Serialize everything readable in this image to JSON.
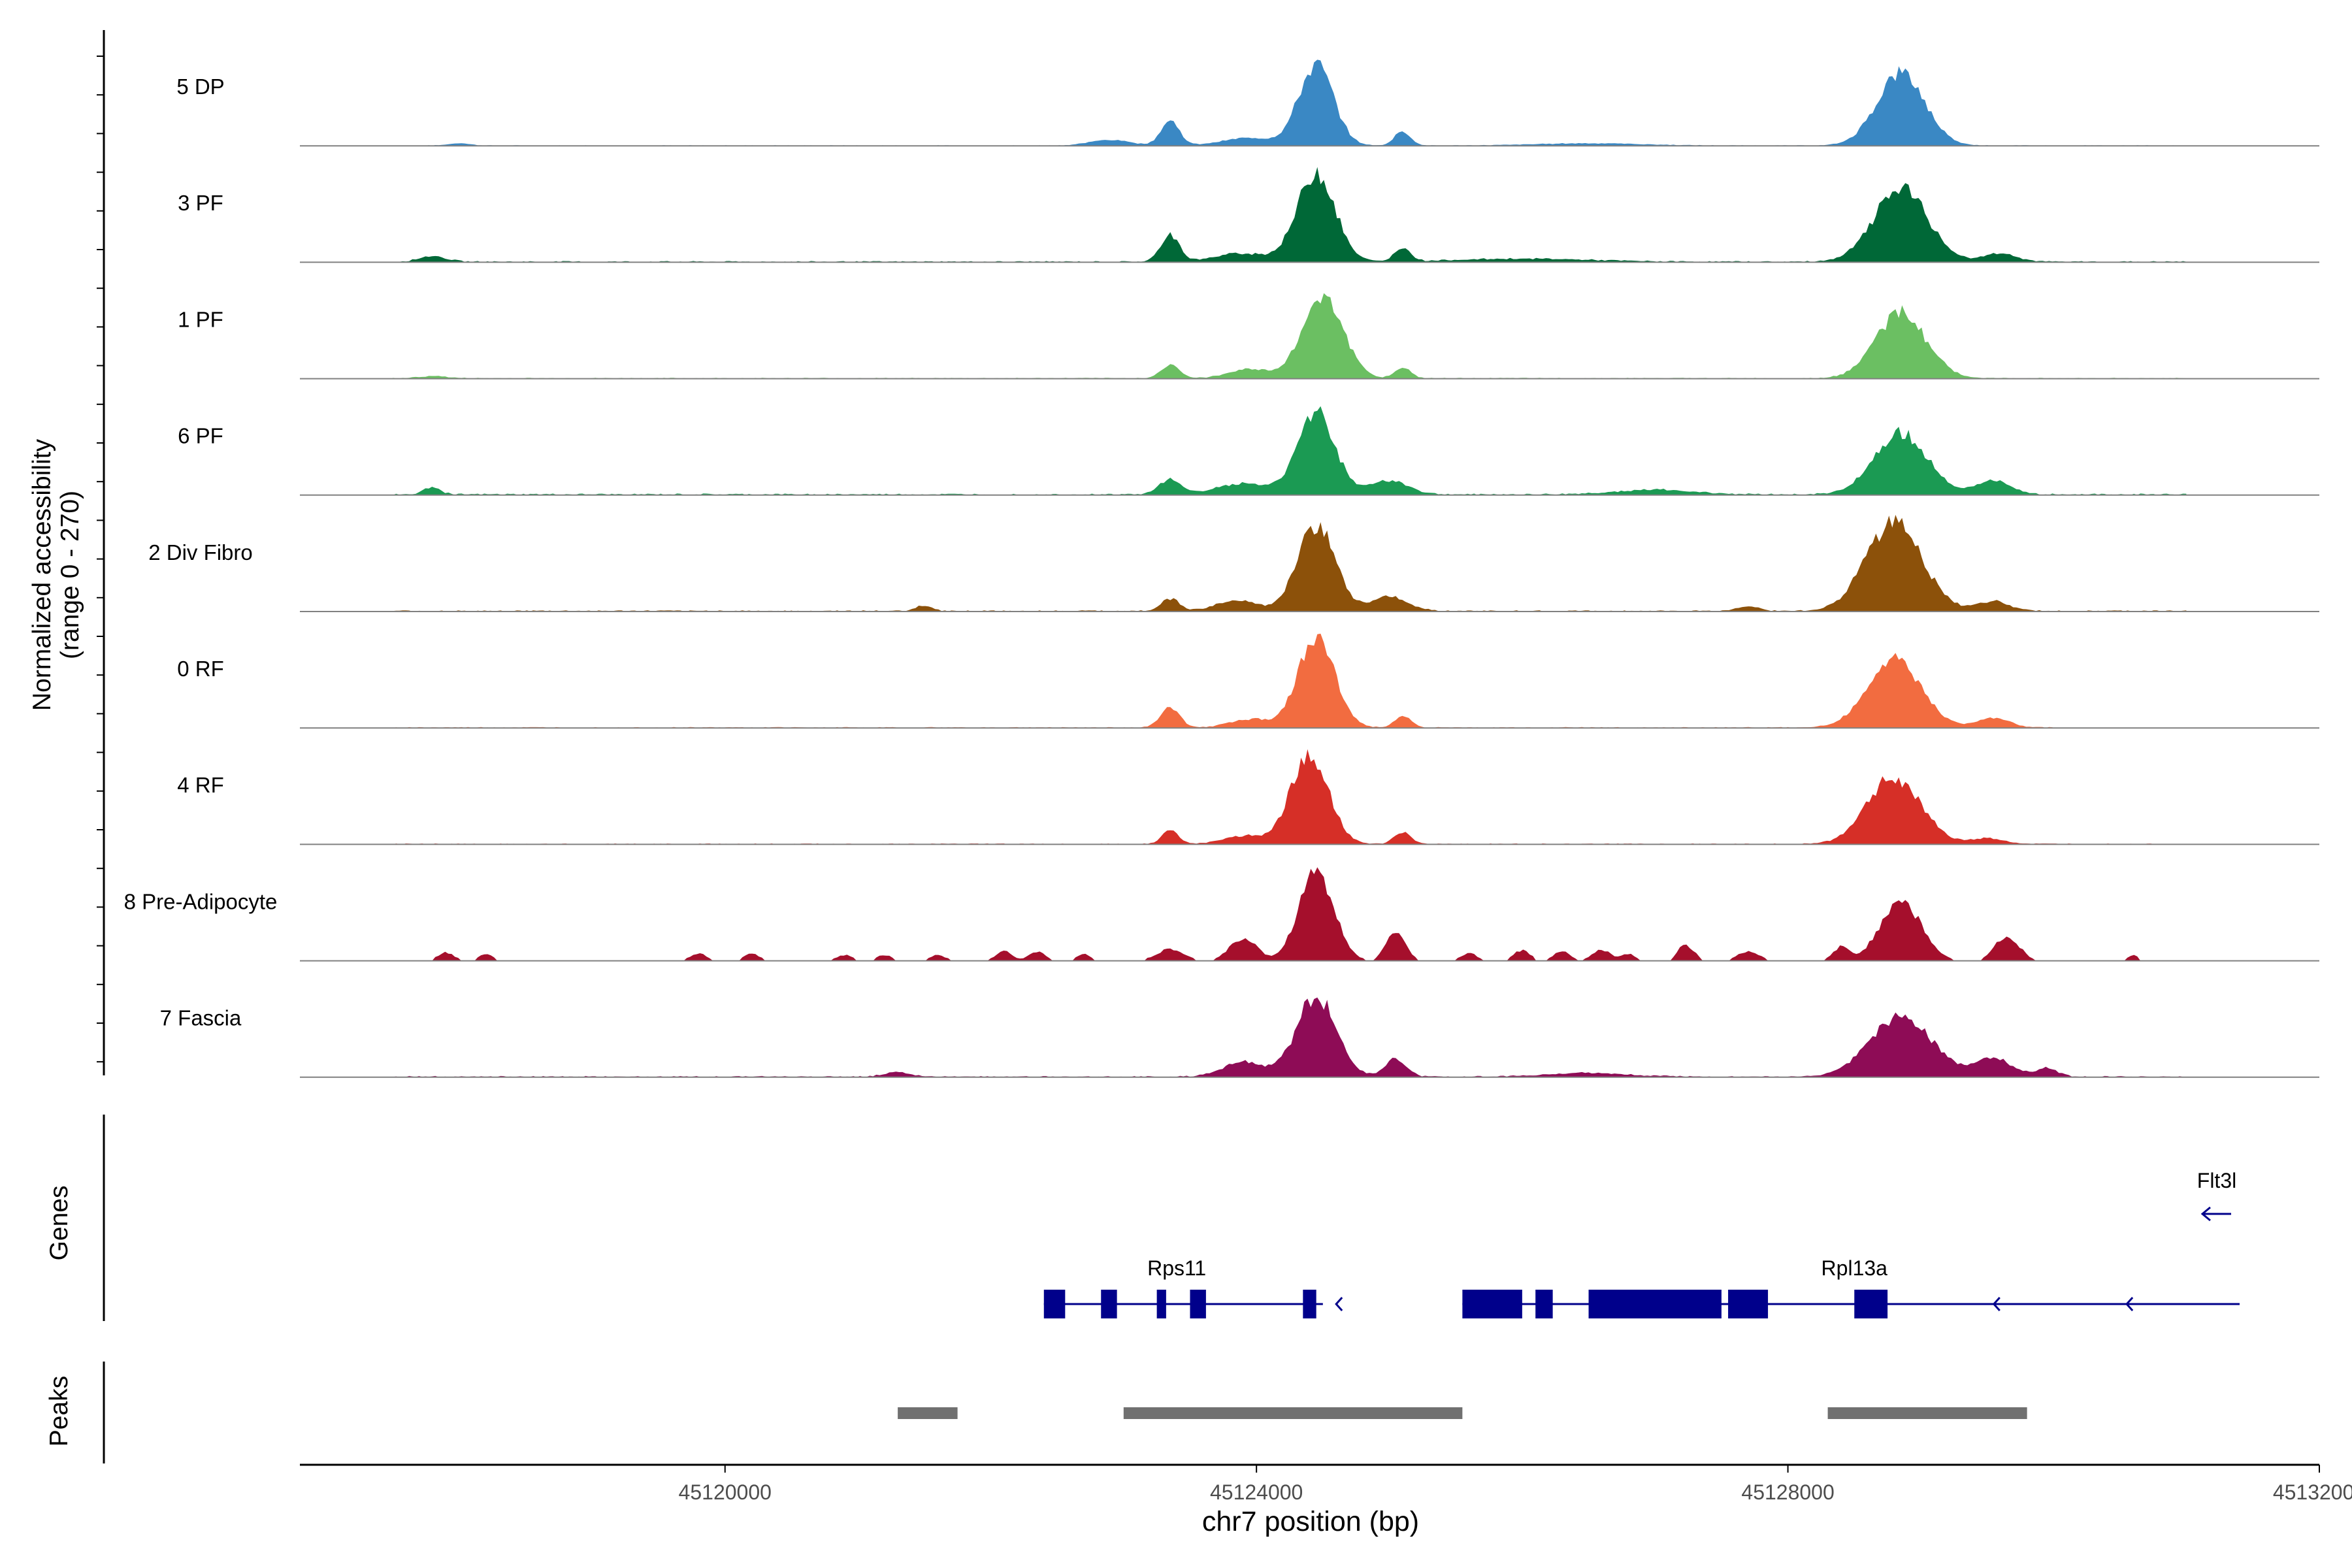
{
  "chart_data": {
    "type": "area",
    "title": "",
    "xlabel": "chr7 position (bp)",
    "ylabel_line1": "Normalized accessibility",
    "ylabel_line2": "(range 0 - 270)",
    "ylim": [
      0,
      270
    ],
    "xlim": [
      45116800,
      45132000
    ],
    "x_ticks": [
      45120000,
      45124000,
      45128000,
      45132000
    ],
    "x_tick_labels": [
      "45120000",
      "45124000",
      "45128000",
      "45132000"
    ],
    "grid": false,
    "series": [
      {
        "name": "5 DP",
        "color": "#3A88C4",
        "noise": 0.02,
        "start": 45117500,
        "end": 45131000,
        "peaks": [
          [
            45124450,
            210,
            130
          ],
          [
            45128850,
            190,
            180
          ],
          [
            45123350,
            65,
            70
          ],
          [
            45125100,
            38,
            60
          ],
          [
            45122900,
            15,
            150
          ],
          [
            45123950,
            20,
            200
          ],
          [
            45126500,
            6,
            400
          ],
          [
            45118000,
            6,
            80
          ]
        ]
      },
      {
        "name": "3 PF",
        "color": "#006837",
        "noise": 0.04,
        "start": 45117500,
        "end": 45131000,
        "peaks": [
          [
            45124450,
            235,
            140
          ],
          [
            45128850,
            190,
            200
          ],
          [
            45123350,
            70,
            70
          ],
          [
            45125100,
            35,
            60
          ],
          [
            45123900,
            22,
            200
          ],
          [
            45129600,
            22,
            120
          ],
          [
            45117800,
            15,
            100
          ],
          [
            45126000,
            8,
            500
          ]
        ]
      },
      {
        "name": "1 PF",
        "color": "#6BBF62",
        "noise": 0.03,
        "start": 45117500,
        "end": 45131000,
        "peaks": [
          [
            45124500,
            220,
            150
          ],
          [
            45128850,
            170,
            190
          ],
          [
            45123350,
            35,
            70
          ],
          [
            45125100,
            28,
            60
          ],
          [
            45123950,
            25,
            150
          ],
          [
            45117800,
            6,
            100
          ]
        ]
      },
      {
        "name": "6 PF",
        "color": "#1B9A53",
        "noise": 0.05,
        "start": 45117500,
        "end": 45131000,
        "peaks": [
          [
            45124450,
            215,
            140
          ],
          [
            45128850,
            160,
            200
          ],
          [
            45123350,
            40,
            80
          ],
          [
            45125000,
            38,
            140
          ],
          [
            45129550,
            35,
            130
          ],
          [
            45123900,
            28,
            200
          ],
          [
            45127000,
            12,
            300
          ],
          [
            45117800,
            20,
            60
          ]
        ]
      },
      {
        "name": "2 Div Fibro",
        "color": "#8C510A",
        "noise": 0.04,
        "start": 45117500,
        "end": 45131000,
        "peaks": [
          [
            45124450,
            225,
            140
          ],
          [
            45128800,
            230,
            210
          ],
          [
            45123350,
            32,
            70
          ],
          [
            45125000,
            38,
            140
          ],
          [
            45123850,
            28,
            150
          ],
          [
            45129550,
            25,
            120
          ],
          [
            45121500,
            15,
            60
          ],
          [
            45127700,
            12,
            80
          ]
        ]
      },
      {
        "name": "0 RF",
        "color": "#F26C40",
        "noise": 0.03,
        "start": 45117500,
        "end": 45130000,
        "peaks": [
          [
            45124450,
            230,
            140
          ],
          [
            45128800,
            175,
            200
          ],
          [
            45123350,
            55,
            70
          ],
          [
            45125100,
            32,
            60
          ],
          [
            45123950,
            22,
            150
          ],
          [
            45129550,
            25,
            120
          ]
        ]
      },
      {
        "name": "4 RF",
        "color": "#D62F27",
        "noise": 0.03,
        "start": 45117500,
        "end": 45131000,
        "peaks": [
          [
            45124400,
            240,
            140
          ],
          [
            45128800,
            175,
            200
          ],
          [
            45123350,
            35,
            60
          ],
          [
            45125100,
            32,
            60
          ],
          [
            45123900,
            22,
            150
          ],
          [
            45129500,
            15,
            120
          ]
        ]
      },
      {
        "name": "8 Pre-Adipocyte",
        "color": "#A50F2C",
        "noise": 0,
        "start": 45117500,
        "end": 45131000,
        "peaks": [
          [
            45124450,
            240,
            130
          ],
          [
            45128850,
            160,
            150
          ],
          [
            45125050,
            80,
            70
          ],
          [
            45123900,
            60,
            100
          ],
          [
            45129650,
            65,
            90
          ],
          [
            45123350,
            30,
            100
          ],
          [
            45128400,
            35,
            60
          ],
          [
            45117900,
            22,
            60
          ],
          [
            45118200,
            18,
            50
          ],
          [
            45122100,
            25,
            60
          ],
          [
            45122350,
            25,
            60
          ],
          [
            45122700,
            18,
            50
          ],
          [
            45121600,
            15,
            60
          ],
          [
            45119800,
            20,
            60
          ],
          [
            45120200,
            18,
            60
          ],
          [
            45126000,
            28,
            60
          ],
          [
            45126300,
            25,
            60
          ],
          [
            45126600,
            28,
            70
          ],
          [
            45127250,
            30,
            60
          ],
          [
            45127700,
            25,
            80
          ],
          [
            45127200,
            18,
            40
          ],
          [
            45125600,
            20,
            60
          ],
          [
            45130600,
            15,
            40
          ],
          [
            45121200,
            15,
            60
          ],
          [
            45120900,
            15,
            60
          ],
          [
            45126800,
            18,
            50
          ]
        ]
      },
      {
        "name": "7 Fascia",
        "color": "#8E0C56",
        "noise": 0.04,
        "start": 45117500,
        "end": 45131000,
        "peaks": [
          [
            45124450,
            210,
            150
          ],
          [
            45128850,
            160,
            230
          ],
          [
            45125050,
            45,
            80
          ],
          [
            45123900,
            40,
            150
          ],
          [
            45129550,
            48,
            140
          ],
          [
            45129950,
            22,
            80
          ],
          [
            45121300,
            12,
            100
          ],
          [
            45126500,
            10,
            300
          ]
        ]
      }
    ],
    "genes_label": "Genes",
    "peaks_label": "Peaks",
    "genes": [
      {
        "name": "Rps11",
        "start": 45122400,
        "end": 45124500,
        "strand": "-",
        "exons": [
          [
            45122400,
            45122560
          ],
          [
            45122830,
            45122950
          ],
          [
            45123250,
            45123320
          ],
          [
            45123500,
            45123620
          ],
          [
            45124350,
            45124450
          ]
        ]
      },
      {
        "name": "Rpl13a",
        "start": 45125550,
        "end": 45131400,
        "strand": "-",
        "exons": [
          [
            45125550,
            45126000
          ],
          [
            45126100,
            45126230
          ],
          [
            45126500,
            45127500
          ],
          [
            45127550,
            45127850
          ],
          [
            45128500,
            45128750
          ]
        ]
      },
      {
        "name": "Flt3l",
        "start": 45131000,
        "end": 45131300,
        "strand": "-",
        "exons": []
      }
    ],
    "peak_regions": [
      [
        45121300,
        45121750
      ],
      [
        45123000,
        45125550
      ],
      [
        45128300,
        45129800
      ]
    ]
  }
}
